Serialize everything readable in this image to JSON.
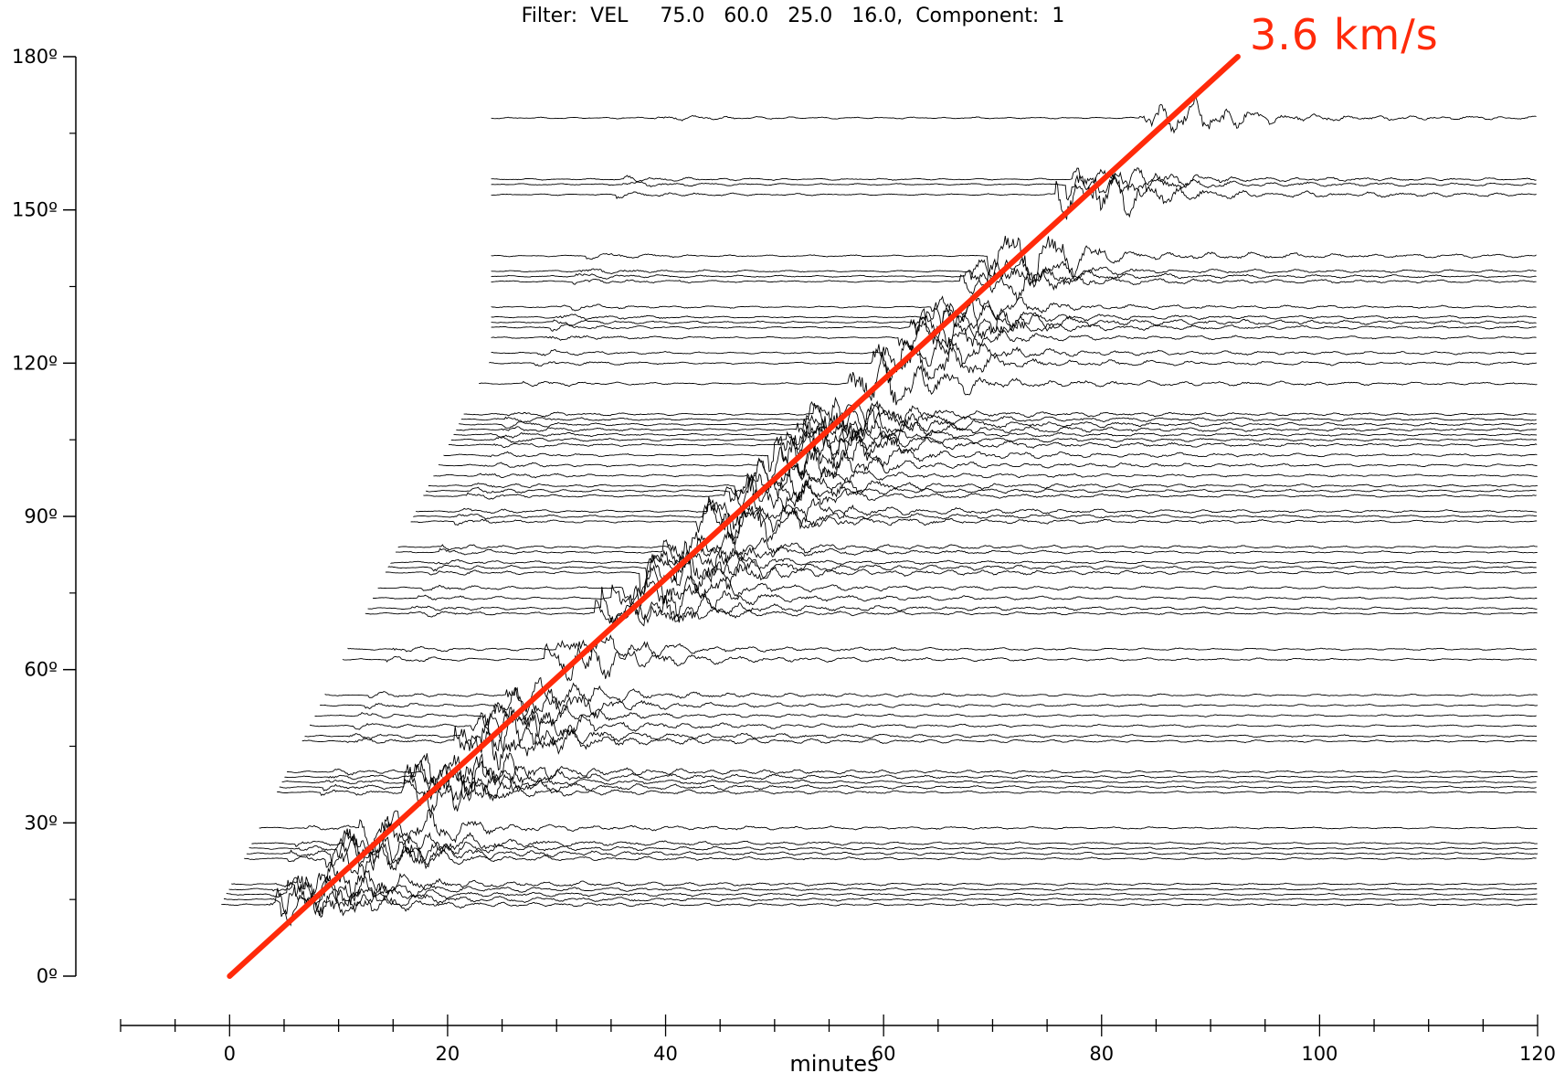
{
  "header": {
    "title": "Filter:  VEL     75.0   60.0   25.0   16.0,  Component:  1"
  },
  "colors": {
    "trace": "#000000",
    "fit_line": "#ff2a0a",
    "axis": "#000000"
  },
  "chart_data": {
    "type": "line",
    "title": "Filter:  VEL     75.0   60.0   25.0   16.0,  Component:  1",
    "xlabel": "minutes",
    "ylabel": "",
    "xlim": [
      -10,
      120
    ],
    "ylim": [
      0,
      180
    ],
    "x_ticks": [
      {
        "value": 0,
        "label": "0"
      },
      {
        "value": 20,
        "label": "20"
      },
      {
        "value": 40,
        "label": "40"
      },
      {
        "value": 60,
        "label": "60"
      },
      {
        "value": 80,
        "label": "80"
      },
      {
        "value": 100,
        "label": "100"
      },
      {
        "value": 120,
        "label": "120"
      }
    ],
    "x_minor_step": 5,
    "y_ticks": [
      {
        "value": 0,
        "label": "0º"
      },
      {
        "value": 30,
        "label": "30º"
      },
      {
        "value": 60,
        "label": "60º"
      },
      {
        "value": 90,
        "label": "90º"
      },
      {
        "value": 120,
        "label": "120º"
      },
      {
        "value": 150,
        "label": "150º"
      },
      {
        "value": 180,
        "label": "180º"
      }
    ],
    "grid": false,
    "trace_distances_deg": [
      14,
      15,
      16,
      17,
      18,
      23,
      24,
      25,
      26,
      29,
      36,
      37,
      38,
      39,
      40,
      46,
      47,
      49,
      51,
      53,
      55,
      62,
      64,
      71,
      72,
      74,
      76,
      79,
      80,
      81,
      83,
      84,
      89,
      90,
      91,
      94,
      95,
      96,
      98,
      100,
      102,
      104,
      105,
      106,
      107,
      108,
      109,
      110,
      116,
      120,
      122,
      125,
      127,
      128,
      129,
      131,
      136,
      137,
      138,
      141,
      153,
      155,
      156,
      168
    ],
    "fit_line": {
      "label": "3.6 km/s",
      "velocity_km_s": 3.6,
      "start": {
        "x": 0,
        "y": 0
      },
      "end": {
        "x": 92.5,
        "y": 180
      }
    }
  }
}
